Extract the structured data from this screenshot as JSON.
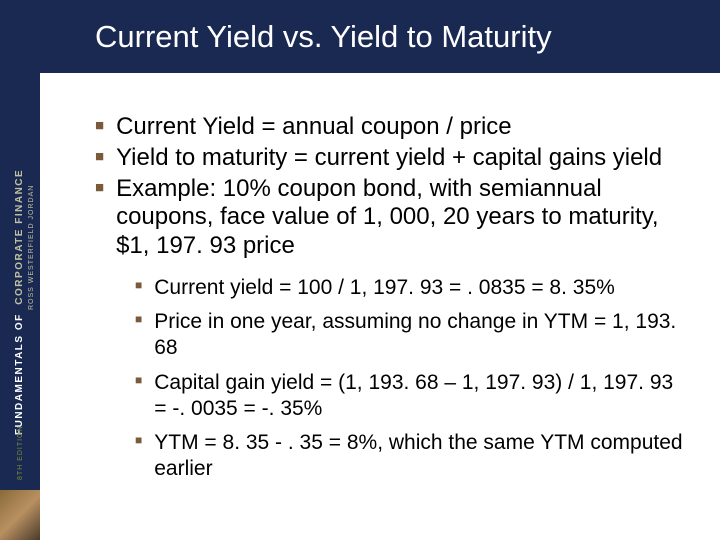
{
  "spine": {
    "title": "FUNDAMENTALS OF",
    "subtitle": "CORPORATE FINANCE",
    "authors": "ROSS  WESTERFIELD  JORDAN",
    "edition": "8TH EDITION"
  },
  "slide": {
    "title": "Current Yield vs. Yield to Maturity",
    "bullets_main": [
      "Current Yield = annual coupon / price",
      "Yield to maturity = current yield + capital gains yield",
      "Example: 10% coupon bond, with semiannual coupons, face value of 1, 000, 20 years to maturity, $1, 197. 93 price"
    ],
    "bullets_sub": [
      "Current yield = 100 / 1, 197. 93 = . 0835 = 8. 35%",
      "Price in one year, assuming no change in YTM = 1, 193. 68",
      "Capital gain yield = (1, 193. 68 – 1, 197. 93) / 1, 197. 93 =   -. 0035 = -. 35%",
      "YTM = 8. 35 - . 35 = 8%, which the same YTM computed earlier"
    ]
  },
  "colors": {
    "title_band": "#1a2952",
    "bullet_square": "#7a5a3a",
    "text": "#000000",
    "background": "#ffffff"
  }
}
